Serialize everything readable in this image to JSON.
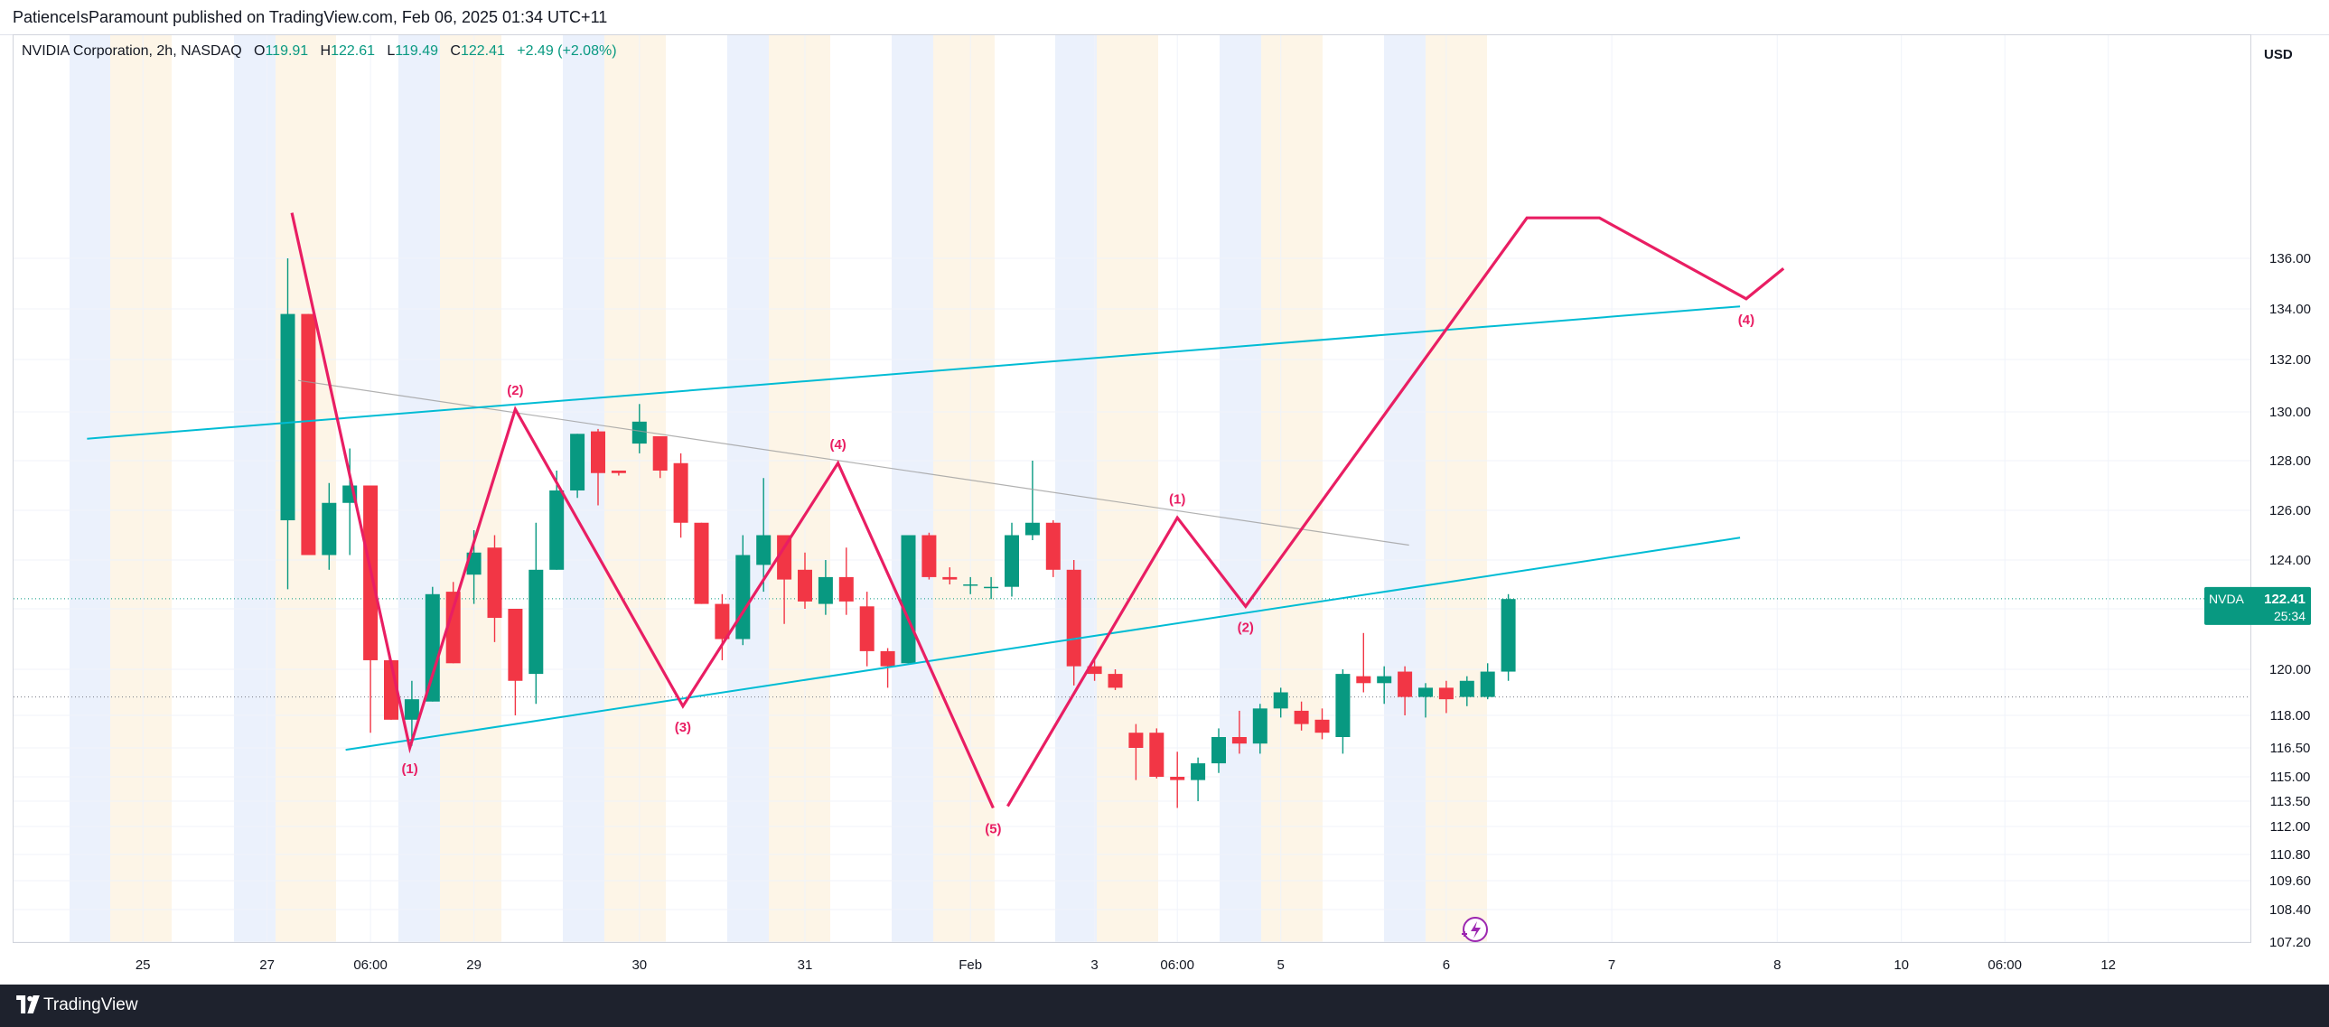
{
  "header": {
    "published_text": "PatienceIsParamount published on TradingView.com, Feb 06, 2025 01:34 UTC+11"
  },
  "legend": {
    "instrument": "NVIDIA Corporation, 2h, NASDAQ",
    "open_label": "O",
    "open_value": "119.91",
    "high_label": "H",
    "high_value": "122.61",
    "low_label": "L",
    "low_value": "119.49",
    "close_label": "C",
    "close_value": "122.41",
    "change": "+2.49 (+2.08%)"
  },
  "price_axis": {
    "currency": "USD"
  },
  "price_badge": {
    "symbol": "NVDA",
    "price": "122.41",
    "countdown": "25:34"
  },
  "footer": {
    "brand": "TradingView"
  },
  "colors": {
    "up": "#089981",
    "down": "#f23645",
    "wave": "#e91e63",
    "channel": "#00bcd4",
    "trend": "#9e9e9e",
    "session_blue": "#e8eefc",
    "session_orange": "#fdf3e3"
  },
  "chart_data": {
    "type": "candlestick",
    "symbol": "NVDA",
    "interval": "2h",
    "y_ticks": [
      107.2,
      108.4,
      109.6,
      110.8,
      112.0,
      113.5,
      115.0,
      116.5,
      118.0,
      120.0,
      122.0,
      124.0,
      126.0,
      128.0,
      130.0,
      132.0,
      134.0,
      136.0
    ],
    "y_tick_labels": [
      "107.20",
      "108.40",
      "109.60",
      "110.80",
      "112.00",
      "113.50",
      "115.00",
      "116.50",
      "118.00",
      "120.00",
      "122.00",
      "124.00",
      "126.00",
      "128.00",
      "130.00",
      "132.00",
      "134.00",
      "136.00"
    ],
    "x_ticks": [
      {
        "label": "25",
        "bar": -7
      },
      {
        "label": "27",
        "bar": -1
      },
      {
        "label": "06:00",
        "bar": 4
      },
      {
        "label": "29",
        "bar": 9
      },
      {
        "label": "30",
        "bar": 17
      },
      {
        "label": "31",
        "bar": 25
      },
      {
        "label": "Feb",
        "bar": 33
      },
      {
        "label": "3",
        "bar": 39
      },
      {
        "label": "06:00",
        "bar": 43
      },
      {
        "label": "5",
        "bar": 48
      },
      {
        "label": "6",
        "bar": 56
      },
      {
        "label": "7",
        "bar": 64
      },
      {
        "label": "8",
        "bar": 72
      },
      {
        "label": "10",
        "bar": 78
      },
      {
        "label": "06:00",
        "bar": 83
      },
      {
        "label": "12",
        "bar": 88
      }
    ],
    "candles": [
      {
        "o": 125.6,
        "h": 136.0,
        "l": 122.8,
        "c": 133.8
      },
      {
        "o": 133.8,
        "h": 133.8,
        "l": 124.2,
        "c": 124.2
      },
      {
        "o": 124.2,
        "h": 127.1,
        "l": 123.6,
        "c": 126.3
      },
      {
        "o": 126.3,
        "h": 128.5,
        "l": 124.2,
        "c": 127.0
      },
      {
        "o": 127.0,
        "h": 127.0,
        "l": 117.2,
        "c": 120.3
      },
      {
        "o": 120.3,
        "h": 120.3,
        "l": 117.8,
        "c": 117.8
      },
      {
        "o": 117.8,
        "h": 119.5,
        "l": 116.6,
        "c": 118.7
      },
      {
        "o": 118.6,
        "h": 122.9,
        "l": 118.6,
        "c": 122.6
      },
      {
        "o": 122.7,
        "h": 123.1,
        "l": 120.2,
        "c": 120.2
      },
      {
        "o": 123.4,
        "h": 125.2,
        "l": 122.2,
        "c": 124.3
      },
      {
        "o": 124.5,
        "h": 125.0,
        "l": 120.9,
        "c": 121.7
      },
      {
        "o": 122.0,
        "h": 122.0,
        "l": 118.0,
        "c": 119.5
      },
      {
        "o": 119.8,
        "h": 125.5,
        "l": 118.5,
        "c": 123.6
      },
      {
        "o": 123.6,
        "h": 127.6,
        "l": 123.6,
        "c": 126.8
      },
      {
        "o": 126.8,
        "h": 129.1,
        "l": 126.5,
        "c": 129.1
      },
      {
        "o": 129.2,
        "h": 129.3,
        "l": 126.2,
        "c": 127.5
      },
      {
        "o": 127.6,
        "h": 127.6,
        "l": 127.4,
        "c": 127.5
      },
      {
        "o": 128.7,
        "h": 130.3,
        "l": 128.3,
        "c": 129.6
      },
      {
        "o": 129.0,
        "h": 129.0,
        "l": 127.3,
        "c": 127.6
      },
      {
        "o": 127.9,
        "h": 128.3,
        "l": 124.9,
        "c": 125.5
      },
      {
        "o": 125.5,
        "h": 125.5,
        "l": 122.2,
        "c": 122.2
      },
      {
        "o": 122.2,
        "h": 122.6,
        "l": 120.3,
        "c": 121.0
      },
      {
        "o": 121.0,
        "h": 125.0,
        "l": 120.8,
        "c": 124.2
      },
      {
        "o": 123.8,
        "h": 127.3,
        "l": 122.7,
        "c": 125.0
      },
      {
        "o": 125.0,
        "h": 125.0,
        "l": 121.5,
        "c": 123.2
      },
      {
        "o": 123.6,
        "h": 124.3,
        "l": 122.0,
        "c": 122.3
      },
      {
        "o": 122.2,
        "h": 124.0,
        "l": 121.8,
        "c": 123.3
      },
      {
        "o": 123.3,
        "h": 124.5,
        "l": 121.8,
        "c": 122.3
      },
      {
        "o": 122.1,
        "h": 122.7,
        "l": 120.1,
        "c": 120.6
      },
      {
        "o": 120.6,
        "h": 120.7,
        "l": 119.2,
        "c": 120.1
      },
      {
        "o": 120.2,
        "h": 125.0,
        "l": 120.2,
        "c": 125.0
      },
      {
        "o": 125.0,
        "h": 125.1,
        "l": 123.2,
        "c": 123.3
      },
      {
        "o": 123.3,
        "h": 123.7,
        "l": 123.0,
        "c": 123.2
      },
      {
        "o": 123.0,
        "h": 123.3,
        "l": 122.6,
        "c": 123.0
      },
      {
        "o": 122.9,
        "h": 123.3,
        "l": 122.4,
        "c": 122.9
      },
      {
        "o": 122.9,
        "h": 125.5,
        "l": 122.5,
        "c": 125.0
      },
      {
        "o": 125.0,
        "h": 128.0,
        "l": 124.8,
        "c": 125.5
      },
      {
        "o": 125.5,
        "h": 125.6,
        "l": 123.3,
        "c": 123.6
      },
      {
        "o": 123.6,
        "h": 124.0,
        "l": 119.3,
        "c": 120.1
      },
      {
        "o": 120.1,
        "h": 120.3,
        "l": 119.5,
        "c": 119.8
      },
      {
        "o": 119.8,
        "h": 120.0,
        "l": 119.1,
        "c": 119.2
      },
      {
        "o": 117.2,
        "h": 117.6,
        "l": 114.8,
        "c": 116.5
      },
      {
        "o": 117.2,
        "h": 117.4,
        "l": 114.9,
        "c": 115.0
      },
      {
        "o": 115.0,
        "h": 116.3,
        "l": 113.1,
        "c": 114.8
      },
      {
        "o": 114.8,
        "h": 116.0,
        "l": 113.5,
        "c": 115.7
      },
      {
        "o": 115.7,
        "h": 117.4,
        "l": 115.2,
        "c": 117.0
      },
      {
        "o": 117.0,
        "h": 118.2,
        "l": 116.2,
        "c": 116.7
      },
      {
        "o": 116.7,
        "h": 118.5,
        "l": 116.2,
        "c": 118.3
      },
      {
        "o": 118.3,
        "h": 119.2,
        "l": 117.9,
        "c": 119.0
      },
      {
        "o": 118.2,
        "h": 118.6,
        "l": 117.3,
        "c": 117.6
      },
      {
        "o": 117.8,
        "h": 118.3,
        "l": 116.9,
        "c": 117.2
      },
      {
        "o": 117.0,
        "h": 120.0,
        "l": 116.2,
        "c": 119.8
      },
      {
        "o": 119.7,
        "h": 121.2,
        "l": 119.0,
        "c": 119.4
      },
      {
        "o": 119.4,
        "h": 120.1,
        "l": 118.5,
        "c": 119.7
      },
      {
        "o": 119.9,
        "h": 120.1,
        "l": 118.0,
        "c": 118.8
      },
      {
        "o": 118.8,
        "h": 119.4,
        "l": 117.9,
        "c": 119.2
      },
      {
        "o": 119.2,
        "h": 119.5,
        "l": 118.1,
        "c": 118.7
      },
      {
        "o": 118.8,
        "h": 119.7,
        "l": 118.4,
        "c": 119.5
      },
      {
        "o": 118.8,
        "h": 120.2,
        "l": 118.7,
        "c": 119.9
      },
      {
        "o": 119.9,
        "h": 122.6,
        "l": 119.5,
        "c": 122.4
      }
    ],
    "elliott_waves": [
      {
        "points": [
          {
            "bar": 0.2,
            "price": 137.8
          },
          {
            "bar": 5.9,
            "price": 116.5
          },
          {
            "bar": 11.0,
            "price": 130.1
          },
          {
            "bar": 19.1,
            "price": 118.4
          },
          {
            "bar": 26.6,
            "price": 127.9
          },
          {
            "bar": 34.1,
            "price": 113.1
          }
        ],
        "labels": [
          {
            "text": "(1)",
            "bar": 5.9,
            "price": 116.5,
            "pos": "below"
          },
          {
            "text": "(2)",
            "bar": 11.0,
            "price": 130.1,
            "pos": "above"
          },
          {
            "text": "(3)",
            "bar": 19.1,
            "price": 118.4,
            "pos": "below"
          },
          {
            "text": "(4)",
            "bar": 26.6,
            "price": 127.9,
            "pos": "above"
          },
          {
            "text": "(5)",
            "bar": 34.1,
            "price": 113.1,
            "pos": "below"
          }
        ]
      },
      {
        "points": [
          {
            "bar": 34.8,
            "price": 113.2
          },
          {
            "bar": 43.0,
            "price": 125.7
          },
          {
            "bar": 46.3,
            "price": 122.1
          },
          {
            "bar": 59.9,
            "price": 137.6
          },
          {
            "bar": 63.4,
            "price": 137.6
          },
          {
            "bar": 70.5,
            "price": 134.4
          },
          {
            "bar": 72.3,
            "price": 135.6
          }
        ],
        "labels": [
          {
            "text": "(1)",
            "bar": 43.0,
            "price": 125.7,
            "pos": "above"
          },
          {
            "text": "(2)",
            "bar": 46.3,
            "price": 122.1,
            "pos": "below"
          },
          {
            "text": "(4)",
            "bar": 70.5,
            "price": 134.4,
            "pos": "below"
          }
        ]
      }
    ],
    "channel_lines": [
      {
        "from": {
          "bar": -9.7,
          "price": 128.9
        },
        "to": {
          "bar": 70.2,
          "price": 134.1
        }
      },
      {
        "from": {
          "bar": 2.8,
          "price": 116.4
        },
        "to": {
          "bar": 70.2,
          "price": 124.9
        }
      }
    ],
    "trend_line": {
      "from": {
        "bar": 0.5,
        "price": 131.2
      },
      "to": {
        "bar": 54.2,
        "price": 124.6
      }
    },
    "dotted_levels": [
      122.41,
      118.8
    ],
    "last_price": 122.41
  }
}
